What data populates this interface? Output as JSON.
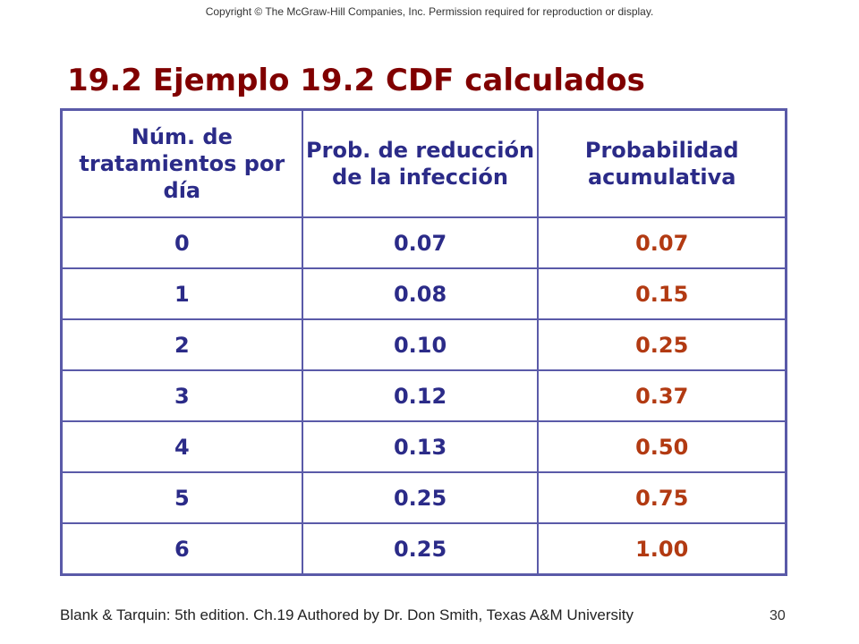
{
  "copyright": "Copyright © The McGraw-Hill Companies, Inc. Permission required for reproduction or display.",
  "title": "19.2 Ejemplo 19.2 CDF calculados",
  "table": {
    "headers": [
      "Núm. de tratamientos por día",
      "Prob. de reducción de la infección",
      "Probabilidad acumulativa"
    ],
    "rows": [
      [
        "0",
        "0.07",
        "0.07"
      ],
      [
        "1",
        "0.08",
        "0.15"
      ],
      [
        "2",
        "0.10",
        "0.25"
      ],
      [
        "3",
        "0.12",
        "0.37"
      ],
      [
        "4",
        "0.13",
        "0.50"
      ],
      [
        "5",
        "0.25",
        "0.75"
      ],
      [
        "6",
        "0.25",
        "1.00"
      ]
    ]
  },
  "colors": {
    "title": "#800000",
    "text_blue": "#2b2b88",
    "cumulative_red": "#b23a12",
    "border": "#5a5aa8"
  },
  "footer": {
    "credit": "Blank & Tarquin: 5th edition. Ch.19 Authored by Dr. Don Smith, Texas A&M University",
    "page_number": "30"
  }
}
